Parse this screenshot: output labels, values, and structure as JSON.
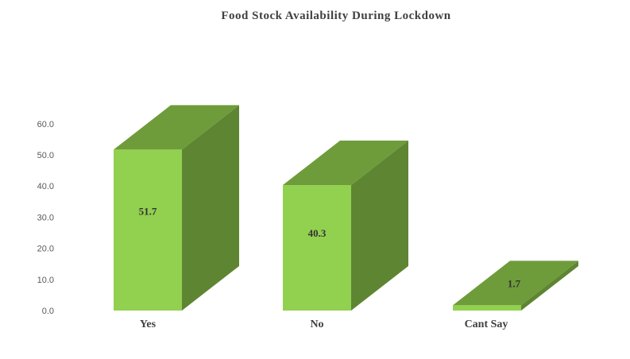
{
  "chart_data": {
    "type": "bar",
    "title": "Food Stock Availability During Lockdown",
    "categories": [
      "Yes",
      "No",
      "Cant Say"
    ],
    "values": [
      51.7,
      40.3,
      1.7
    ],
    "data_labels": [
      "51.7",
      "40.3",
      "1.7"
    ],
    "y_ticks": [
      "0.0",
      "10.0",
      "20.0",
      "30.0",
      "40.0",
      "50.0",
      "60.0"
    ],
    "ylim": [
      0,
      60
    ],
    "grid": false,
    "style": "3d-column",
    "colors": {
      "front": "#92D050",
      "top": "#6E9C3A",
      "side": "#5E8532"
    }
  }
}
